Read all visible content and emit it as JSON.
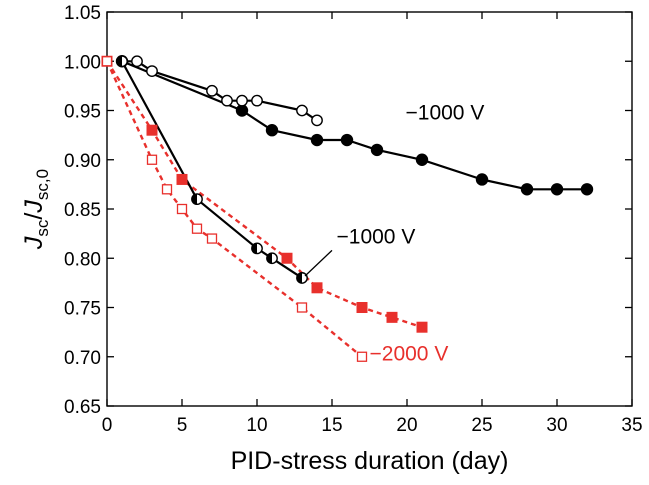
{
  "chart_data": {
    "type": "scatter",
    "xlabel": "PID-stress duration (day)",
    "ylabel": {
      "J1": "J",
      "sub1": "sc",
      "slash": "/",
      "J2": "J",
      "sub2": "sc,0"
    },
    "xlim": [
      0,
      35
    ],
    "ylim": [
      0.65,
      1.05
    ],
    "xticks": [
      "0",
      "5",
      "10",
      "15",
      "20",
      "25",
      "30",
      "35"
    ],
    "yticks": [
      "0.65",
      "0.70",
      "0.75",
      "0.80",
      "0.85",
      "0.90",
      "0.95",
      "1.00",
      "1.05"
    ],
    "grid": false,
    "colors": {
      "black": "#000000",
      "red": "#e8302c"
    },
    "series": [
      {
        "marker": "filled-circle",
        "color": "#000000",
        "line": "solid",
        "x": [
          1,
          9,
          11,
          14,
          16,
          18,
          21,
          25,
          28,
          30,
          32
        ],
        "y": [
          1.0,
          0.95,
          0.93,
          0.92,
          0.92,
          0.91,
          0.9,
          0.88,
          0.87,
          0.87,
          0.87
        ]
      },
      {
        "marker": "open-circle",
        "color": "#000000",
        "line": "solid",
        "x": [
          1,
          2,
          3,
          7,
          8,
          9,
          10,
          13,
          14
        ],
        "y": [
          1.0,
          1.0,
          0.99,
          0.97,
          0.96,
          0.96,
          0.96,
          0.95,
          0.94
        ]
      },
      {
        "marker": "half-filled-circle",
        "color": "#000000",
        "line": "solid",
        "x": [
          1,
          6,
          10,
          11,
          13
        ],
        "y": [
          1.0,
          0.86,
          0.81,
          0.8,
          0.78
        ]
      },
      {
        "marker": "filled-square",
        "color": "#e8302c",
        "line": "dashed",
        "x": [
          0,
          3,
          5,
          12,
          14,
          17,
          19,
          21
        ],
        "y": [
          1.0,
          0.93,
          0.88,
          0.8,
          0.77,
          0.75,
          0.74,
          0.73
        ]
      },
      {
        "marker": "open-square",
        "color": "#e8302c",
        "line": "dashed",
        "x": [
          0,
          3,
          4,
          5,
          6,
          7,
          13,
          17
        ],
        "y": [
          1.0,
          0.9,
          0.87,
          0.85,
          0.83,
          0.82,
          0.75,
          0.7
        ]
      }
    ],
    "annotations": [
      {
        "text": "−1000 V",
        "color": "#000000",
        "x": 19.9,
        "y": 0.941
      },
      {
        "text": "−1000 V",
        "color": "#000000",
        "x": 15.3,
        "y": 0.815
      },
      {
        "text": "−2000 V",
        "color": "#e8302c",
        "x": 17.5,
        "y": 0.696
      }
    ]
  }
}
